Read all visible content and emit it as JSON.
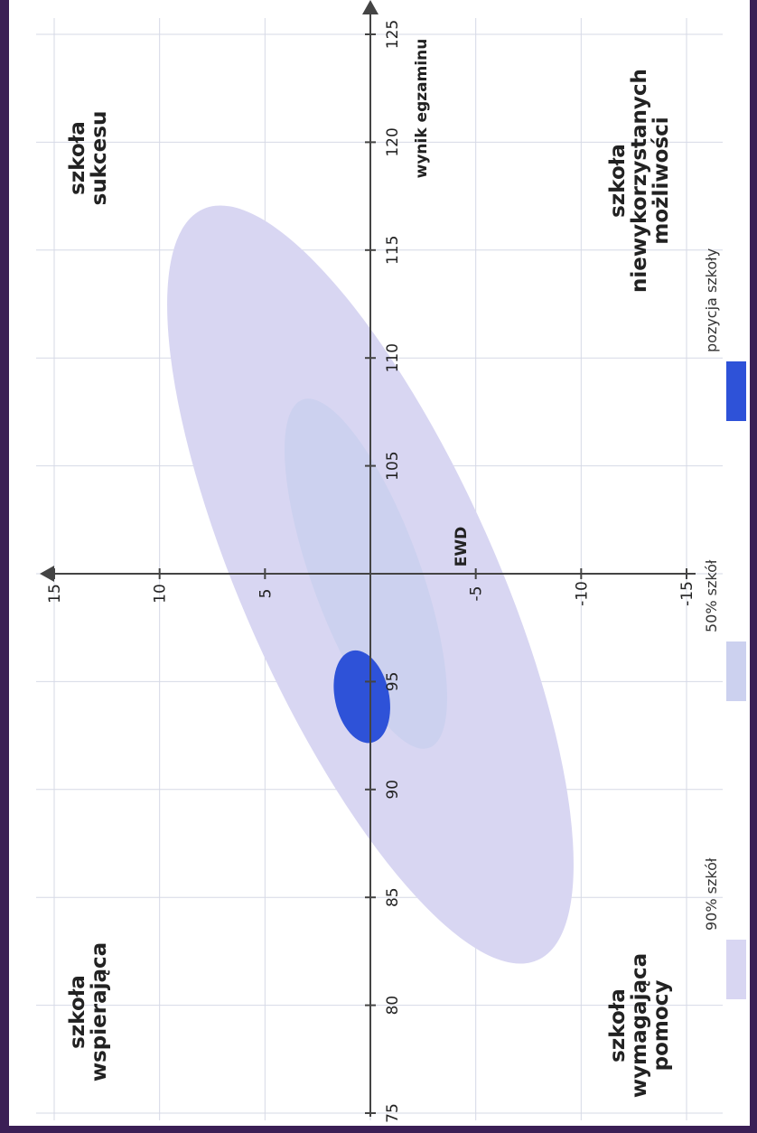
{
  "chart_data": {
    "type": "scatter",
    "orientation": "rotated",
    "x_axis": {
      "label": "wynik egzaminu",
      "range": [
        75,
        125
      ],
      "ticks": [
        "75",
        "80",
        "85",
        "90",
        "95",
        "105",
        "110",
        "115",
        "120",
        "125"
      ]
    },
    "y_axis": {
      "label": "EWD",
      "range": [
        -15,
        15
      ],
      "ticks": [
        "-15",
        "-10",
        "-5",
        "5",
        "10",
        "15"
      ]
    },
    "axis_crossing": {
      "x": 100,
      "y": 0
    },
    "grid": true,
    "quadrant_labels": {
      "top_left": [
        "szkoła",
        "wspierająca"
      ],
      "top_right": [
        "szkoła",
        "sukcesu"
      ],
      "bottom_left": [
        "szkoła",
        "wymagająca",
        "pomocy"
      ],
      "bottom_right": [
        "szkoła",
        "niewykorzystanych",
        "możliwości"
      ]
    },
    "regions": [
      {
        "name": "90% szkół",
        "color": "#d8d6f2",
        "center": {
          "x": 100,
          "y": 0
        },
        "shape": "tilted-ellipse"
      },
      {
        "name": "50% szkół",
        "color": "#ccd1ef",
        "center": {
          "x": 100,
          "y": 0
        },
        "shape": "tilted-ellipse"
      },
      {
        "name": "pozycja szkoły",
        "color": "#2e52d8",
        "center": {
          "x": 94.3,
          "y": 0.4
        },
        "shape": "ellipse"
      }
    ],
    "legend": {
      "placement": "bottom",
      "entries": [
        {
          "label": "90% szkół",
          "color": "#d8d6f2"
        },
        {
          "label": "50% szkół",
          "color": "#ccd1ef"
        },
        {
          "label": "pozycja szkoły",
          "color": "#2e52d8"
        }
      ]
    }
  }
}
